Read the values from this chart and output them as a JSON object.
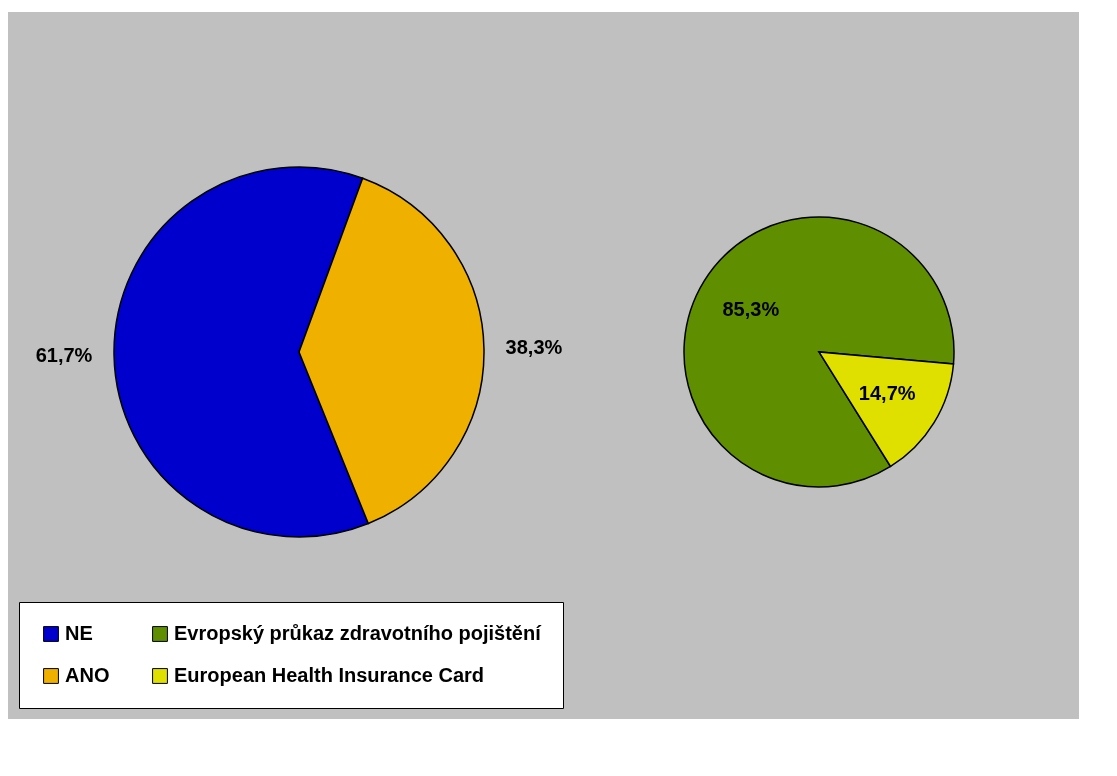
{
  "chart_data": [
    {
      "type": "pie",
      "categories": [
        "NE",
        "ANO"
      ],
      "values": [
        61.7,
        38.3
      ],
      "colors": [
        "#0000cc",
        "#f0b000"
      ],
      "value_labels": [
        "61,7%",
        "38,3%"
      ],
      "legend": "bottom"
    },
    {
      "type": "pie",
      "categories": [
        "Evropský průkaz zdravotního pojištění",
        "European Health Insurance Card"
      ],
      "values": [
        85.3,
        14.7
      ],
      "colors": [
        "#5f8f00",
        "#e0e000"
      ],
      "value_labels": [
        "85,3%",
        "14,7%"
      ],
      "legend": "bottom"
    }
  ]
}
